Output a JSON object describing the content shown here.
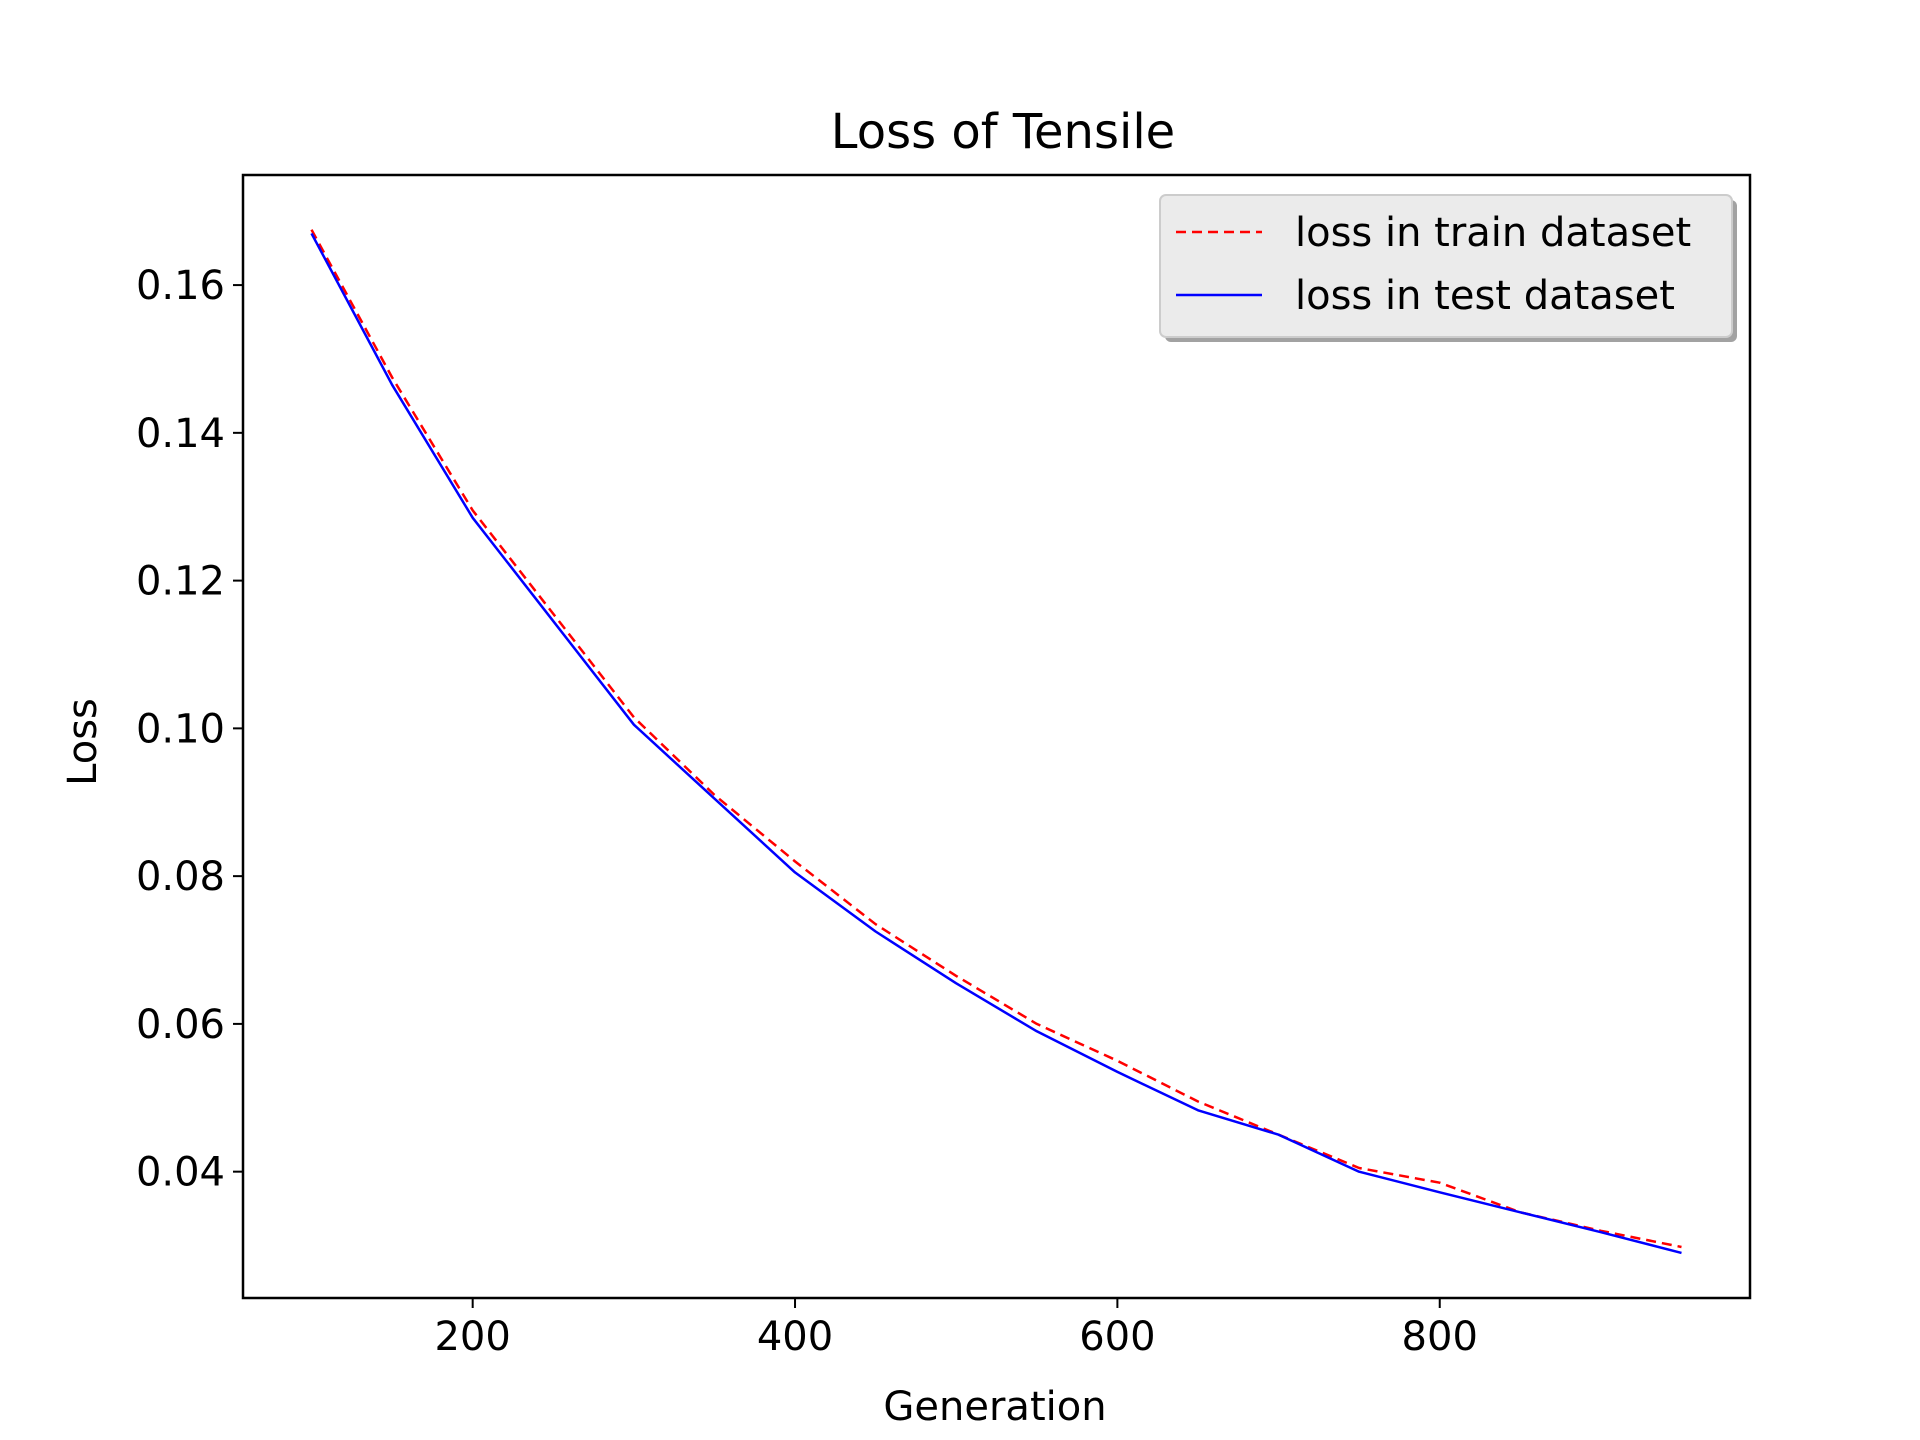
{
  "chart_data": {
    "type": "line",
    "title": "Loss of Tensile",
    "xlabel": "Generation",
    "ylabel": "Loss",
    "xlim": [
      57.5,
      992.5
    ],
    "ylim": [
      0.0229,
      0.1749
    ],
    "xticks": [
      200,
      400,
      600,
      800
    ],
    "xtick_labels": [
      "200",
      "400",
      "600",
      "800"
    ],
    "yticks": [
      0.04,
      0.06,
      0.08,
      0.1,
      0.12,
      0.14,
      0.16
    ],
    "ytick_labels": [
      "0.04",
      "0.06",
      "0.08",
      "0.10",
      "0.12",
      "0.14",
      "0.16"
    ],
    "grid": false,
    "legend": "top-right",
    "x": [
      100,
      150,
      200,
      250,
      300,
      350,
      400,
      450,
      500,
      550,
      600,
      650,
      700,
      750,
      800,
      850,
      900,
      950
    ],
    "series": [
      {
        "name": "loss in train dataset",
        "color": "#ff0000",
        "style": "dashed",
        "values": [
          0.1675,
          0.1475,
          0.1295,
          0.1155,
          0.1015,
          0.091,
          0.082,
          0.0735,
          0.0665,
          0.06,
          0.055,
          0.0495,
          0.045,
          0.0405,
          0.0385,
          0.0345,
          0.032,
          0.0298
        ]
      },
      {
        "name": "loss in test dataset",
        "color": "#0000ff",
        "style": "solid",
        "values": [
          0.167,
          0.1465,
          0.1285,
          0.1145,
          0.1005,
          0.0905,
          0.0805,
          0.0725,
          0.0655,
          0.059,
          0.0535,
          0.0483,
          0.045,
          0.04,
          0.0372,
          0.0345,
          0.0318,
          0.029
        ]
      }
    ]
  }
}
